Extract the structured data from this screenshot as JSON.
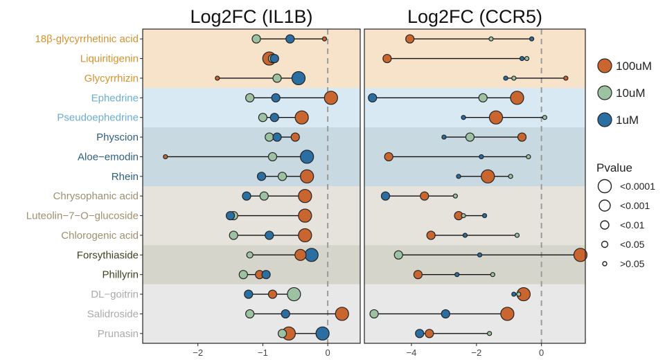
{
  "chart_data": [
    {
      "type": "lollipop",
      "title": "Log2FC (IL1B)",
      "xlim": [
        -2.85,
        0.5
      ],
      "xticks": [
        -2,
        -1,
        0
      ],
      "compounds": [
        "18β-glycyrrhetinic acid",
        "Liquiritigenin",
        "Glycyrrhizin",
        "Ephedrine",
        "Pseudoephedrine",
        "Physcion",
        "Aloe−emodin",
        "Rhein",
        "Chrysophanic acid",
        "Luteolin−7−O−glucoside",
        "Chlorogenic acid",
        "Forsythiaside",
        "Phillyrin",
        "DL−goitrin",
        "Salidroside",
        "Prunasin"
      ],
      "series": [
        {
          "name": "100uM",
          "values": [
            -0.05,
            -0.9,
            -1.7,
            0.05,
            -0.4,
            -0.5,
            -2.5,
            -0.32,
            -0.35,
            -0.35,
            -0.35,
            -0.42,
            -1.05,
            -0.85,
            0.22,
            -0.6
          ]
        },
        {
          "name": "10uM",
          "values": [
            -1.1,
            -0.85,
            -0.78,
            -1.2,
            -1.0,
            -0.9,
            -0.85,
            -0.7,
            -0.98,
            -1.45,
            -1.45,
            -1.2,
            -1.3,
            -0.52,
            -1.2,
            -0.7
          ]
        },
        {
          "name": "1uM",
          "values": [
            -0.58,
            -0.82,
            -0.45,
            -0.8,
            -0.82,
            -0.78,
            -0.32,
            -1.02,
            -1.25,
            -1.5,
            -0.9,
            -0.25,
            -0.95,
            -1.22,
            -0.65,
            -0.08
          ]
        }
      ],
      "pvalue_class": [
        [
          4,
          0,
          4,
          0,
          0,
          2,
          4,
          0,
          0,
          0,
          0,
          1,
          2,
          2,
          0,
          0
        ],
        [
          2,
          2,
          2,
          2,
          2,
          2,
          2,
          2,
          2,
          2,
          2,
          3,
          2,
          0,
          2,
          2
        ],
        [
          2,
          2,
          0,
          2,
          2,
          2,
          0,
          2,
          2,
          2,
          2,
          0,
          2,
          2,
          2,
          0
        ]
      ]
    },
    {
      "type": "lollipop",
      "title": "Log2FC (CCR5)",
      "xlim": [
        -5.45,
        1.35
      ],
      "xticks": [
        -4,
        -2,
        0
      ],
      "compounds": [
        "18β-glycyrrhetinic acid",
        "Liquiritigenin",
        "Glycyrrhizin",
        "Ephedrine",
        "Pseudoephedrine",
        "Physcion",
        "Aloe−emodin",
        "Rhein",
        "Chrysophanic acid",
        "Luteolin−7−O−glucoside",
        "Chlorogenic acid",
        "Forsythiaside",
        "Phillyrin",
        "DL−goitrin",
        "Salidroside",
        "Prunasin"
      ],
      "series": [
        {
          "name": "100uM",
          "values": [
            -4.05,
            -4.75,
            0.75,
            -0.75,
            -1.4,
            -0.6,
            -4.7,
            -1.65,
            -3.6,
            -2.55,
            -3.4,
            1.2,
            -3.8,
            -0.55,
            -1.05,
            -3.45
          ]
        },
        {
          "name": "10uM",
          "values": [
            -1.55,
            -0.45,
            -0.85,
            -1.8,
            0.1,
            -2.2,
            -0.4,
            -0.95,
            -2.65,
            -2.4,
            -0.75,
            -4.4,
            -1.5,
            -0.7,
            -5.15,
            -1.6
          ]
        },
        {
          "name": "1uM",
          "values": [
            -0.3,
            -0.6,
            -1.1,
            -5.2,
            -2.4,
            -3.0,
            -1.85,
            -2.55,
            -4.8,
            -1.75,
            -2.35,
            -1.9,
            -2.6,
            -0.85,
            -2.95,
            -3.75
          ]
        }
      ],
      "pvalue_class": [
        [
          2,
          2,
          4,
          0,
          0,
          2,
          2,
          0,
          2,
          2,
          2,
          0,
          2,
          0,
          0,
          2
        ],
        [
          4,
          4,
          4,
          2,
          4,
          2,
          4,
          4,
          4,
          4,
          4,
          2,
          4,
          4,
          2,
          4
        ],
        [
          4,
          4,
          4,
          2,
          4,
          4,
          4,
          4,
          2,
          4,
          4,
          4,
          4,
          4,
          2,
          2
        ]
      ]
    }
  ],
  "row_groups": [
    {
      "rows": [
        0,
        1,
        2
      ],
      "bg": "#f7e3c9",
      "label_color": "#d9922b"
    },
    {
      "rows": [
        3,
        4
      ],
      "bg": "#d8e9f3",
      "label_color": "#6aaed3"
    },
    {
      "rows": [
        5,
        6,
        7
      ],
      "bg": "#c9d9e1",
      "label_color": "#2d5f82"
    },
    {
      "rows": [
        8,
        9,
        10
      ],
      "bg": "#e6e2dc",
      "label_color": "#9e9070"
    },
    {
      "rows": [
        11,
        12
      ],
      "bg": "#d6d5cc",
      "label_color": "#3f3f22"
    },
    {
      "rows": [
        13,
        14,
        15
      ],
      "bg": "#e8e8e8",
      "label_color": "#aaaaaa"
    }
  ],
  "legend": {
    "concentration": [
      {
        "name": "100uM",
        "color": "#c9652e"
      },
      {
        "name": "10uM",
        "color": "#9dc2a2"
      },
      {
        "name": "1uM",
        "color": "#2a6ea2"
      }
    ],
    "pvalue_title": "Pvalue",
    "pvalue_items": [
      "<0.0001",
      "<0.001",
      "<0.01",
      "<0.05",
      ">0.05"
    ]
  }
}
